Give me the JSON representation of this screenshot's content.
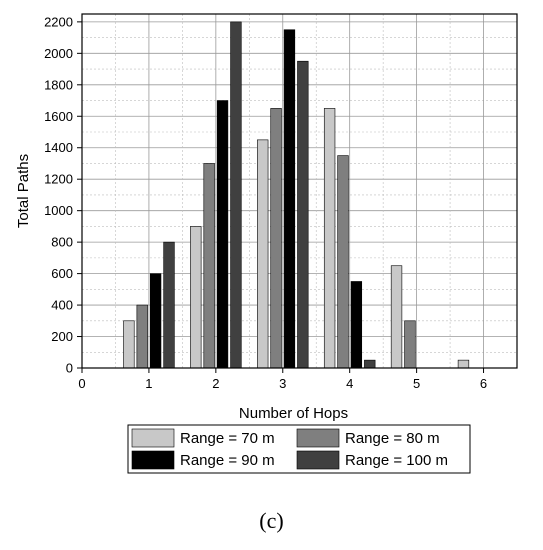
{
  "chart_data": {
    "type": "bar",
    "xlabel": "Number of Hops",
    "ylabel": "Total Paths",
    "xlim": [
      0,
      6.5
    ],
    "ylim": [
      0,
      2250
    ],
    "xticks": [
      0,
      1,
      2,
      3,
      4,
      5,
      6
    ],
    "yticks": [
      0,
      200,
      400,
      600,
      800,
      1000,
      1200,
      1400,
      1600,
      1800,
      2000,
      2200
    ],
    "grid": true,
    "legend_position": "bottom-center",
    "categories": [
      1,
      2,
      3,
      4,
      5,
      6
    ],
    "series": [
      {
        "name": "Range = 70 m",
        "color": "#c8c8c8",
        "values": [
          300,
          900,
          1450,
          1650,
          650,
          50
        ]
      },
      {
        "name": "Range = 80 m",
        "color": "#7f7f7f",
        "values": [
          400,
          1300,
          1650,
          1350,
          300,
          0
        ]
      },
      {
        "name": "Range = 90 m",
        "color": "#000000",
        "values": [
          600,
          1700,
          2150,
          550,
          0,
          0
        ]
      },
      {
        "name": "Range = 100 m",
        "color": "#404040",
        "values": [
          800,
          2200,
          1950,
          50,
          0,
          0
        ]
      }
    ]
  },
  "panel_label": "(c)"
}
